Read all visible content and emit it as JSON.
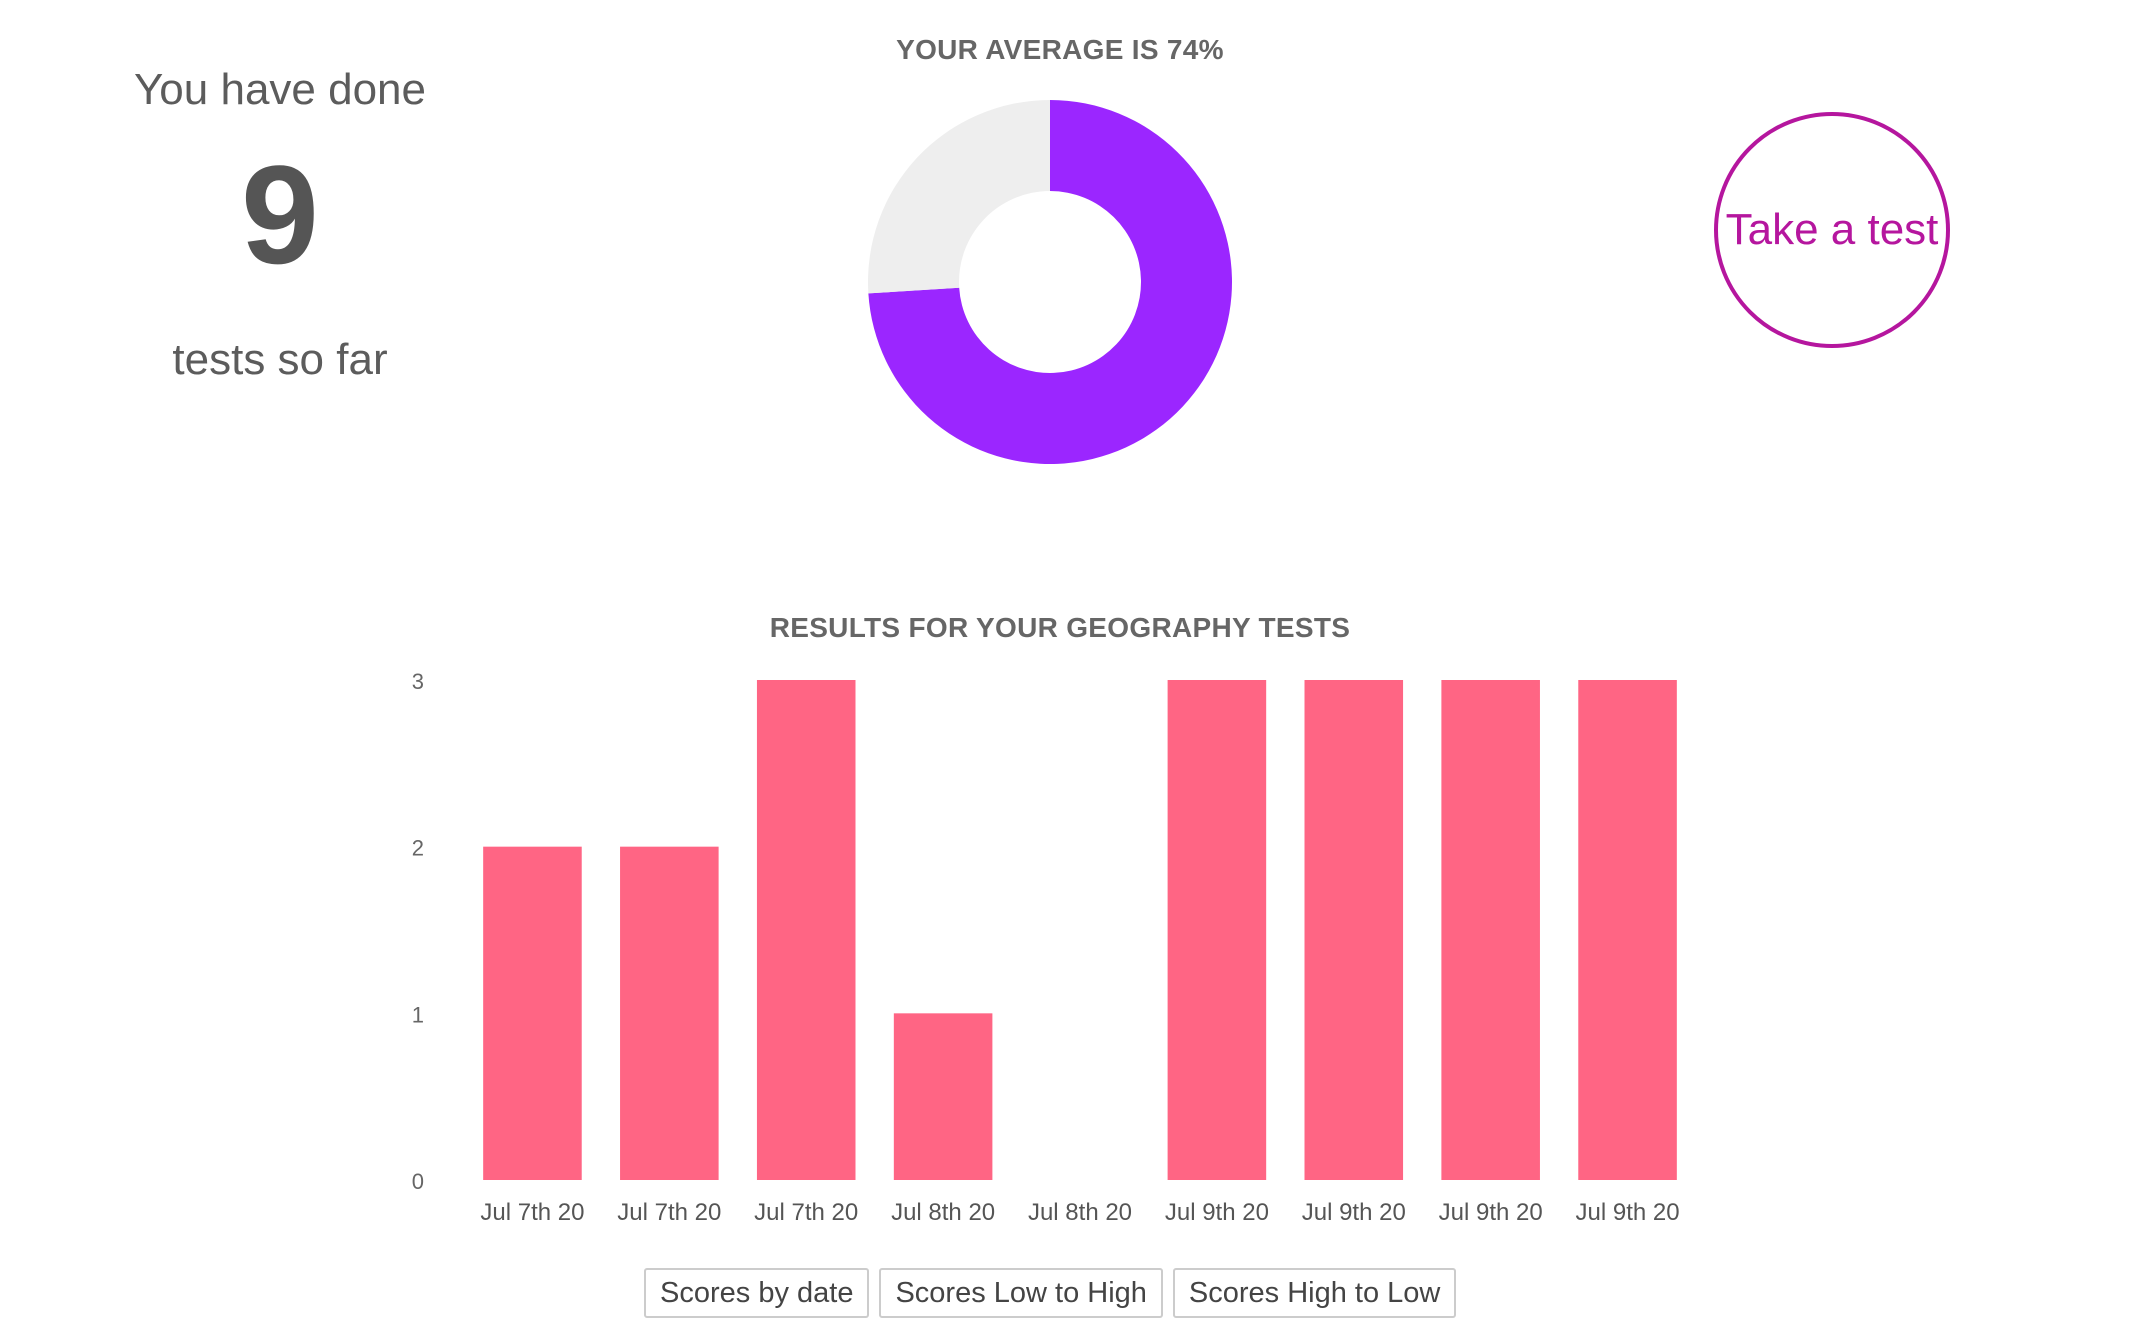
{
  "summary": {
    "pre_text": "You have done",
    "count": "9",
    "post_text": "tests so far"
  },
  "take_test": {
    "label": "Take a test",
    "color": "#b5169e"
  },
  "sort_buttons": [
    {
      "label": "Scores by date"
    },
    {
      "label": "Scores Low to High"
    },
    {
      "label": "Scores High to Low"
    }
  ],
  "chart_data": [
    {
      "type": "pie",
      "style": "donut",
      "title": "YOUR AVERAGE IS 74%",
      "slices": [
        {
          "label": "",
          "value": 74,
          "color": "#9b26ff"
        },
        {
          "label": "",
          "value": 26,
          "color": "#eeeeee"
        }
      ]
    },
    {
      "type": "bar",
      "title": "RESULTS FOR YOUR GEOGRAPHY TESTS",
      "categories": [
        "Jul 7th 20",
        "Jul 7th 20",
        "Jul 7th 20",
        "Jul 8th 20",
        "Jul 8th 20",
        "Jul 9th 20",
        "Jul 9th 20",
        "Jul 9th 20",
        "Jul 9th 20"
      ],
      "values": [
        2,
        2,
        3,
        1,
        0,
        3,
        3,
        3,
        3
      ],
      "yticks": [
        "0",
        "1",
        "2",
        "3"
      ],
      "ylim": [
        0,
        3
      ],
      "xlabel": "",
      "ylabel": "",
      "grid": false,
      "legend": "none",
      "color": "#ff6584"
    }
  ]
}
